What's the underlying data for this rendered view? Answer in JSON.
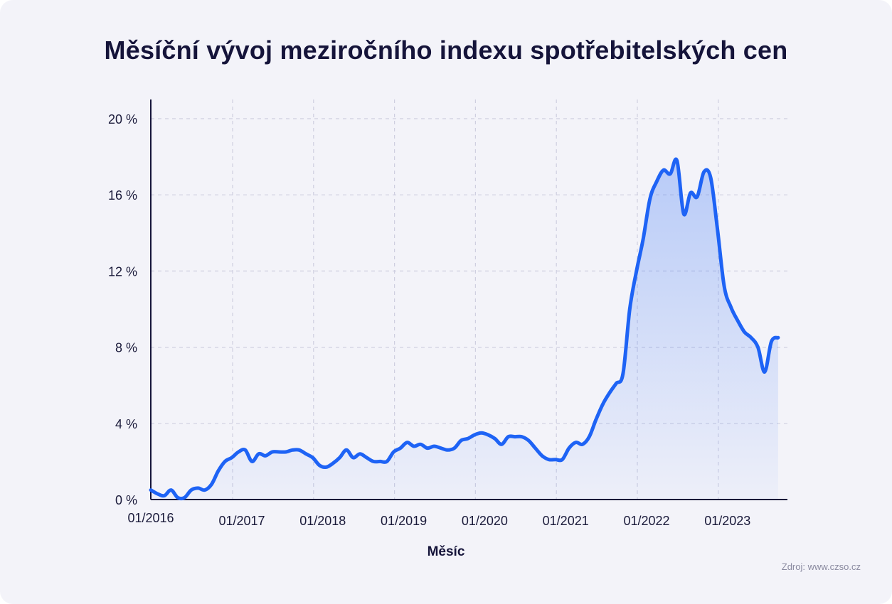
{
  "title": "Měsíční vývoj meziročního indexu spotřebitelských cen",
  "source": "Zdroj: www.czso.cz",
  "colors": {
    "line": "#1e63f5",
    "axis": "#15143a",
    "grid": "#cfcfe0",
    "text": "#1a1a3a",
    "background": "#f3f3f9"
  },
  "chart_data": {
    "type": "area",
    "xlabel": "Měsíc",
    "ylabel": "",
    "ylim": [
      0,
      20
    ],
    "yticks": [
      0,
      4,
      8,
      12,
      16,
      20
    ],
    "ytick_labels": [
      "0 %",
      "4 %",
      "8 %",
      "12 %",
      "16 %",
      "20 %"
    ],
    "xtick_labels": [
      "01/2016",
      "01/2017",
      "01/2018",
      "01/2019",
      "01/2020",
      "01/2021",
      "01/2022",
      "01/2023"
    ],
    "grid": true,
    "series": [
      {
        "x": [
          "01/2016",
          "02/2016",
          "03/2016",
          "04/2016",
          "05/2016",
          "06/2016",
          "07/2016",
          "08/2016",
          "09/2016",
          "10/2016",
          "11/2016",
          "12/2016",
          "01/2017",
          "02/2017",
          "03/2017",
          "04/2017",
          "05/2017",
          "06/2017",
          "07/2017",
          "08/2017",
          "09/2017",
          "10/2017",
          "11/2017",
          "12/2017",
          "01/2018",
          "02/2018",
          "03/2018",
          "04/2018",
          "05/2018",
          "06/2018",
          "07/2018",
          "08/2018",
          "09/2018",
          "10/2018",
          "11/2018",
          "12/2018",
          "01/2019",
          "02/2019",
          "03/2019",
          "04/2019",
          "05/2019",
          "06/2019",
          "07/2019",
          "08/2019",
          "09/2019",
          "10/2019",
          "11/2019",
          "12/2019",
          "01/2020",
          "02/2020",
          "03/2020",
          "04/2020",
          "05/2020",
          "06/2020",
          "07/2020",
          "08/2020",
          "09/2020",
          "10/2020",
          "11/2020",
          "12/2020",
          "01/2021",
          "02/2021",
          "03/2021",
          "04/2021",
          "05/2021",
          "06/2021",
          "07/2021",
          "08/2021",
          "09/2021",
          "10/2021",
          "11/2021",
          "12/2021",
          "01/2022",
          "02/2022",
          "03/2022",
          "04/2022",
          "05/2022",
          "06/2022",
          "07/2022",
          "08/2022",
          "09/2022",
          "10/2022",
          "11/2022",
          "12/2022",
          "01/2023",
          "02/2023",
          "03/2023",
          "04/2023",
          "05/2023",
          "06/2023",
          "07/2023",
          "08/2023",
          "09/2023",
          "10/2023"
        ],
        "y": [
          0.5,
          0.3,
          0.2,
          0.5,
          0.1,
          0.1,
          0.5,
          0.6,
          0.5,
          0.8,
          1.5,
          2.0,
          2.2,
          2.5,
          2.6,
          2.0,
          2.4,
          2.3,
          2.5,
          2.5,
          2.5,
          2.6,
          2.6,
          2.4,
          2.2,
          1.8,
          1.7,
          1.9,
          2.2,
          2.6,
          2.2,
          2.4,
          2.2,
          2.0,
          2.0,
          2.0,
          2.5,
          2.7,
          3.0,
          2.8,
          2.9,
          2.7,
          2.8,
          2.7,
          2.6,
          2.7,
          3.1,
          3.2,
          3.4,
          3.5,
          3.4,
          3.2,
          2.9,
          3.3,
          3.3,
          3.3,
          3.1,
          2.7,
          2.3,
          2.1,
          2.1,
          2.1,
          2.7,
          3.0,
          2.9,
          3.3,
          4.2,
          5.0,
          5.6,
          6.1,
          6.6,
          10.0,
          12.0,
          13.7,
          15.8,
          16.7,
          17.3,
          17.1,
          17.8,
          15.0,
          16.1,
          15.9,
          17.2,
          16.9,
          14.2,
          11.2,
          10.1,
          9.4,
          8.8,
          8.5,
          8.0,
          6.7,
          8.3,
          8.5
        ]
      }
    ]
  }
}
